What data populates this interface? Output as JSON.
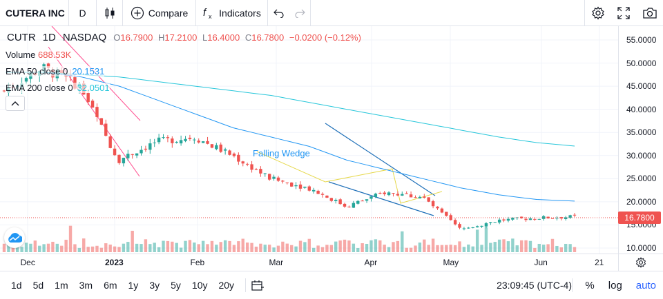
{
  "toolbar": {
    "symbol": "CUTERA INC",
    "interval": "D",
    "compare_label": "Compare",
    "indicators_label": "Indicators",
    "icons": [
      "candles-icon",
      "plus-circle-icon",
      "fx-icon",
      "undo-icon",
      "redo-icon",
      "gear-icon",
      "fullscreen-icon",
      "camera-icon"
    ]
  },
  "legend": {
    "ticker": "CUTR",
    "interval": "1D",
    "exchange": "NASDAQ",
    "o_label": "O",
    "o_value": "16.7900",
    "h_label": "H",
    "h_value": "17.2100",
    "l_label": "L",
    "l_value": "16.4000",
    "c_label": "C",
    "c_value": "16.7800",
    "change": "−0.0200 (−0.12%)"
  },
  "indicators": {
    "volume_label": "Volume",
    "volume_value": "688.53K",
    "ema50_label": "EMA 50 close 0",
    "ema50_value": "20.1531",
    "ema200_label": "EMA 200 close 0",
    "ema200_value": "32.0501"
  },
  "price_axis": [
    "55.0000",
    "50.0000",
    "45.0000",
    "40.0000",
    "35.0000",
    "30.0000",
    "25.0000",
    "20.0000",
    "15.0000",
    "10.0000"
  ],
  "last_price": "16.7800",
  "time_axis": [
    {
      "label": "Dec",
      "bold": false
    },
    {
      "label": "2023",
      "bold": true
    },
    {
      "label": "Feb",
      "bold": false
    },
    {
      "label": "Mar",
      "bold": false
    },
    {
      "label": "Apr",
      "bold": false
    },
    {
      "label": "May",
      "bold": false
    },
    {
      "label": "Jun",
      "bold": false
    },
    {
      "label": "21",
      "bold": false
    }
  ],
  "annotation": "Falling Wedge",
  "ranges": [
    "1d",
    "5d",
    "1m",
    "3m",
    "6m",
    "1y",
    "3y",
    "5y",
    "10y",
    "20y"
  ],
  "clock": "23:09:45 (UTC-4)",
  "bottom_right": {
    "percent": "%",
    "log": "log",
    "auto": "auto"
  },
  "colors": {
    "up": "#26a69a",
    "down": "#ef5350",
    "ema50": "#2196f3",
    "ema200": "#26c6da",
    "wedge": "#e6d84a",
    "trend": "#1e6fb8",
    "channel": "#ff4d8f"
  },
  "chart_data": {
    "type": "candlestick",
    "title": "CUTR 1D NASDAQ",
    "ylim": [
      8.5,
      57
    ],
    "approx_close_path": [
      {
        "x": "Dec 2022",
        "y": 44
      },
      {
        "x": "mid Dec",
        "y": 49
      },
      {
        "x": "early Jan 2023",
        "y": 45
      },
      {
        "x": "mid Jan",
        "y": 29
      },
      {
        "x": "late Jan",
        "y": 33
      },
      {
        "x": "Feb",
        "y": 34
      },
      {
        "x": "Mar",
        "y": 30
      },
      {
        "x": "late Mar",
        "y": 25
      },
      {
        "x": "Apr",
        "y": 23
      },
      {
        "x": "mid Apr",
        "y": 19
      },
      {
        "x": "late Apr",
        "y": 22
      },
      {
        "x": "May",
        "y": 21
      },
      {
        "x": "mid May",
        "y": 14
      },
      {
        "x": "late May",
        "y": 16
      },
      {
        "x": "Jun",
        "y": 16.5
      },
      {
        "x": "mid Jun",
        "y": 16.78
      }
    ],
    "ema50_path": [
      48,
      48,
      47,
      45,
      42,
      39,
      36,
      34,
      32,
      29,
      27,
      25,
      23,
      21.5,
      20.5,
      20.15
    ],
    "ema200_path": [
      48,
      48,
      47.5,
      47,
      46,
      45,
      44,
      43,
      41.5,
      40,
      38.5,
      37,
      35.5,
      34,
      32.8,
      32.05
    ]
  }
}
